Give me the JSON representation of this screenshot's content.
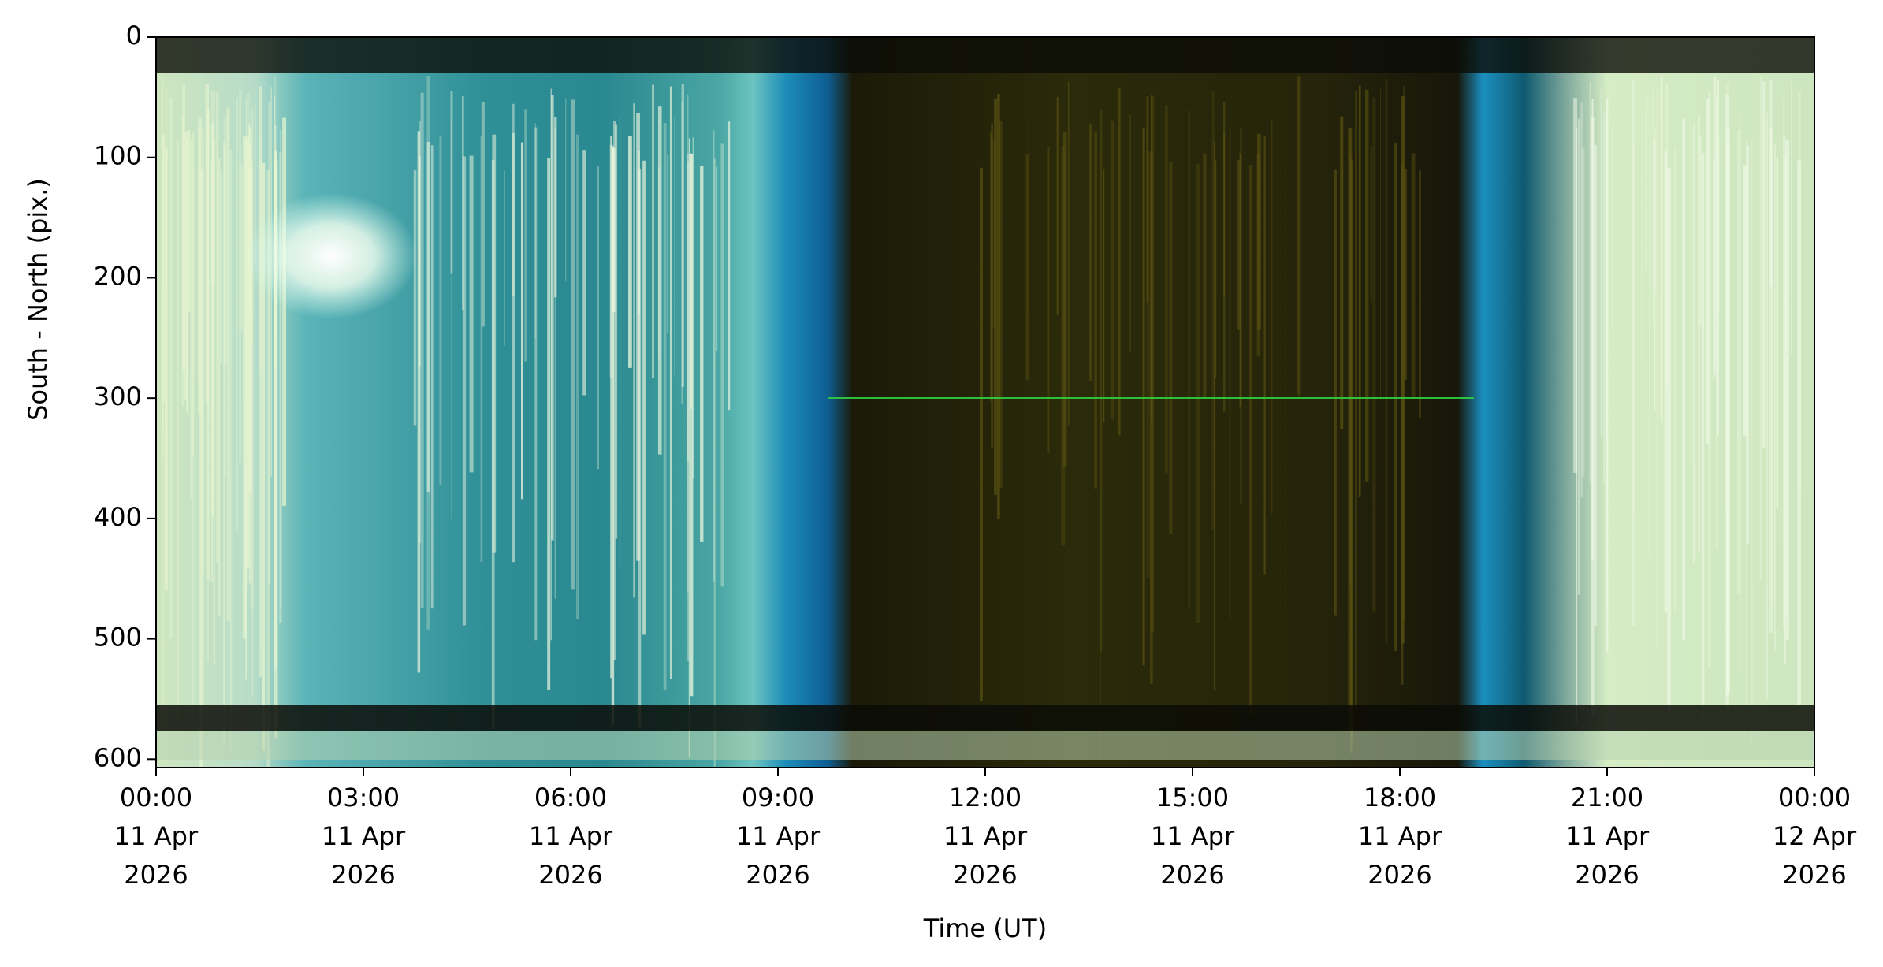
{
  "chart_data": {
    "type": "image",
    "xlabel": "Time (UT)",
    "ylabel": "South - North (pix.)",
    "xlim": [
      "2026-04-11T00:00",
      "2026-04-12T00:00"
    ],
    "xticks": [
      {
        "value": "2026-04-11T00:00",
        "label": [
          "00:00",
          "11 Apr",
          "2026"
        ]
      },
      {
        "value": "2026-04-11T03:00",
        "label": [
          "03:00",
          "11 Apr",
          "2026"
        ]
      },
      {
        "value": "2026-04-11T06:00",
        "label": [
          "06:00",
          "11 Apr",
          "2026"
        ]
      },
      {
        "value": "2026-04-11T09:00",
        "label": [
          "09:00",
          "11 Apr",
          "2026"
        ]
      },
      {
        "value": "2026-04-11T12:00",
        "label": [
          "12:00",
          "11 Apr",
          "2026"
        ]
      },
      {
        "value": "2026-04-11T15:00",
        "label": [
          "15:00",
          "11 Apr",
          "2026"
        ]
      },
      {
        "value": "2026-04-11T18:00",
        "label": [
          "18:00",
          "11 Apr",
          "2026"
        ]
      },
      {
        "value": "2026-04-11T21:00",
        "label": [
          "21:00",
          "11 Apr",
          "2026"
        ]
      },
      {
        "value": "2026-04-12T00:00",
        "label": [
          "00:00",
          "12 Apr",
          "2026"
        ]
      }
    ],
    "ylim": [
      607,
      0
    ],
    "yticks": [
      0,
      100,
      200,
      300,
      400,
      500,
      600
    ]
  }
}
